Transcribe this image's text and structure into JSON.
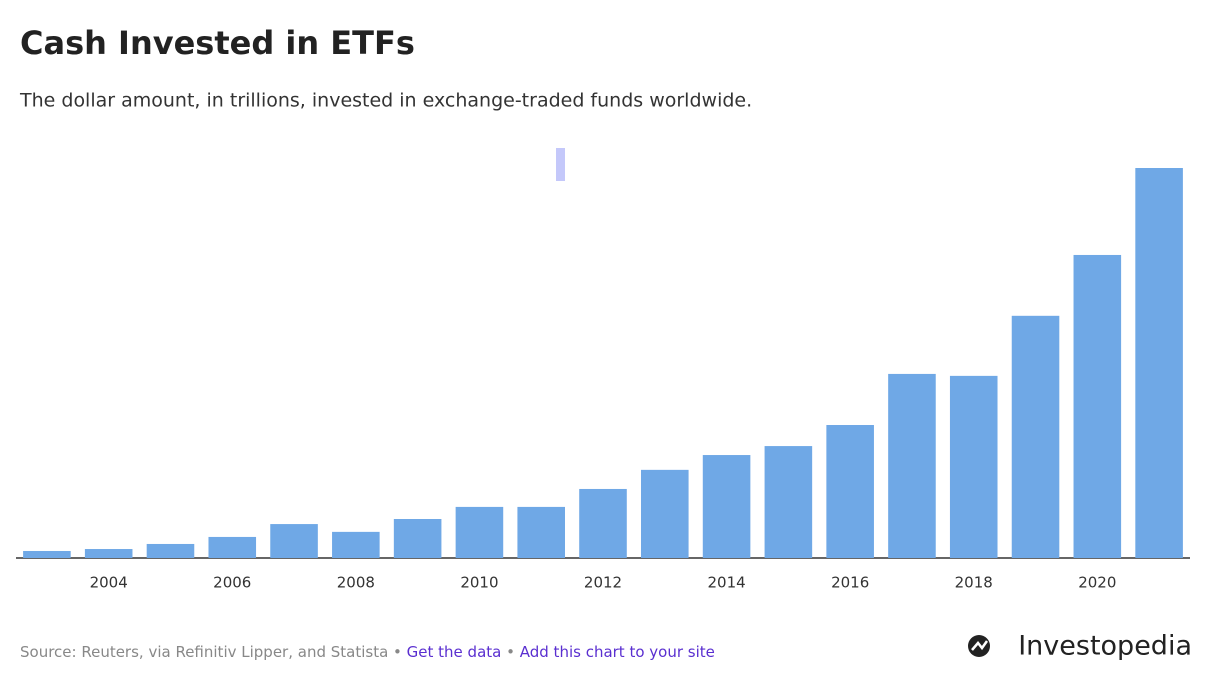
{
  "chart_data": {
    "type": "bar",
    "title": "Cash Invested in ETFs",
    "subtitle": "The dollar amount, in trillions, invested in exchange-traded funds worldwide.",
    "categories": [
      null,
      "2004",
      null,
      "2006",
      null,
      "2008",
      null,
      "2010",
      null,
      "2012",
      null,
      "2014",
      null,
      "2016",
      null,
      "2018",
      null,
      "2020",
      null
    ],
    "values": [
      0.18,
      0.23,
      0.36,
      0.54,
      0.87,
      0.67,
      1.0,
      1.31,
      1.31,
      1.77,
      2.26,
      2.64,
      2.87,
      3.41,
      4.72,
      4.67,
      6.21,
      7.77,
      10.0
    ],
    "color": "#6fa8e6",
    "ylim": [
      0,
      10
    ],
    "source": "Source: Reuters, via Refinitiv Lipper, and Statista",
    "links": [
      "Get the data",
      "Add this chart to your site"
    ],
    "brand": "Investopedia"
  }
}
